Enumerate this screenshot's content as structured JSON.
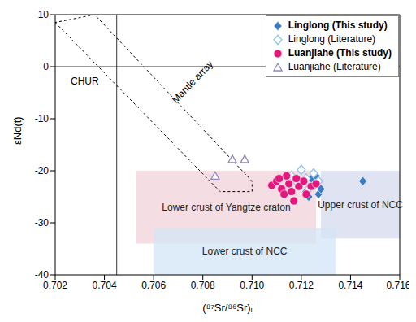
{
  "chart_data": {
    "type": "scatter",
    "x_label": "(⁸⁷Sr/⁸⁶Sr)ᵢ",
    "y_label": "εNd(t)",
    "xlim": [
      0.702,
      0.716
    ],
    "xticks": [
      0.702,
      0.704,
      0.706,
      0.708,
      {
        "value": 0.71,
        "label": "0.710"
      },
      0.712,
      0.714,
      0.716
    ],
    "ylim": [
      -40,
      10
    ],
    "yticks": [
      -40,
      -30,
      -20,
      -10,
      0,
      10
    ],
    "legend": "upper right",
    "reference_lines": {
      "x": 0.7045,
      "y": 0
    },
    "regions": [
      {
        "label": "Lower crust of Yangtze craton",
        "x": [
          0.7053,
          0.7126
        ],
        "y": [
          -34,
          -20
        ],
        "color": "#f2d3d9"
      },
      {
        "label": "Upper crust of NCC",
        "x": [
          0.7128,
          0.716
        ],
        "y": [
          -33,
          -20
        ],
        "color": "#d5d9ee"
      },
      {
        "label": "Lower crust of NCC",
        "x": [
          0.706,
          0.7134
        ],
        "y": [
          -40,
          -31
        ],
        "color": "#d3e4f6"
      }
    ],
    "mantle_array": {
      "x": [
        0.702,
        0.7087,
        0.71,
        0.71,
        0.7036
      ],
      "y": [
        8.5,
        -24,
        -24,
        -22,
        10
      ]
    },
    "annotations": [
      {
        "text": "Mantle array",
        "x": 0.7076,
        "y": -3
      },
      {
        "text": "CHUR",
        "x": 0.7032,
        "y": -3
      }
    ],
    "series": [
      {
        "name": "Linglong (This study)",
        "color": "#3b7cc2",
        "marker": "diamond",
        "x": [
          0.7119,
          0.7121,
          0.7122,
          0.7124,
          0.7125,
          0.7126,
          0.7127,
          0.7123,
          0.712,
          0.7128,
          0.7126,
          0.7145
        ],
        "y": [
          -23,
          -22,
          -24,
          -21.5,
          -23,
          -22.5,
          -24.5,
          -25,
          -22.5,
          -23.5,
          -21,
          -22
        ]
      },
      {
        "name": "Linglong (Literature)",
        "color": "#8fc1ea",
        "marker": "diamond_open",
        "x": [
          0.712,
          0.7116,
          0.7122,
          0.7125,
          0.7118,
          0.7127,
          0.7123
        ],
        "y": [
          -19.8,
          -21,
          -21.5,
          -20.5,
          -22,
          -22,
          -23.5
        ]
      },
      {
        "name": "Luanjiahe (This study)",
        "color": "#e4187c",
        "marker": "circle",
        "x": [
          0.7108,
          0.711,
          0.7112,
          0.7114,
          0.7115,
          0.7116,
          0.7117,
          0.7118,
          0.7119,
          0.7121,
          0.7122,
          0.7124,
          0.7126,
          0.7113,
          0.7111
        ],
        "y": [
          -22.8,
          -22,
          -23.5,
          -21,
          -22.5,
          -24,
          -25.8,
          -21.5,
          -23,
          -22,
          -24.5,
          -23,
          -22.5,
          -24.5,
          -21.5
        ]
      },
      {
        "name": "Luanjiahe (Literature)",
        "color": "#8f88c0",
        "marker": "triangle_open",
        "x": [
          0.7085,
          0.7092,
          0.7097
        ],
        "y": [
          -21,
          -17.8,
          -17.8
        ]
      }
    ]
  }
}
